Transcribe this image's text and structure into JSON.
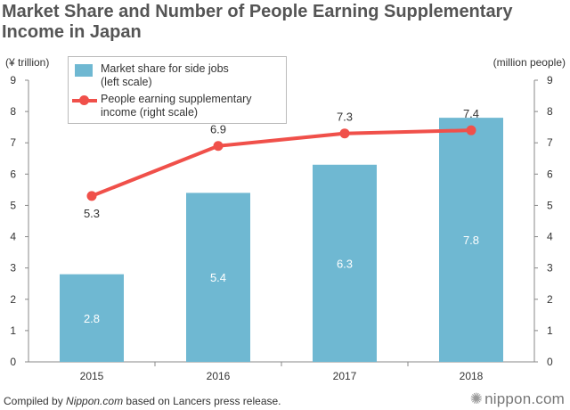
{
  "title": "Market Share and Number of People Earning Supplementary Income in Japan",
  "footer": {
    "prefix": "Compiled by ",
    "source": "Nippon.com",
    "suffix": " based on Lancers press release."
  },
  "brand": {
    "icon": "nippon-logo-icon",
    "text": "nippon.com"
  },
  "colors": {
    "bar": "#6fb8d2",
    "line": "#f0504a",
    "axis": "#888888",
    "grid": "#e0e0e0"
  },
  "chart_data": {
    "type": "bar",
    "title": "Market Share and Number of People Earning Supplementary Income in Japan",
    "categories": [
      "2015",
      "2016",
      "2017",
      "2018"
    ],
    "series": [
      {
        "name": "Market share for side jobs (left scale)",
        "kind": "bar",
        "axis": "left",
        "values": [
          2.8,
          5.4,
          6.3,
          7.8
        ]
      },
      {
        "name": "People earning supplementary income (right scale)",
        "kind": "line",
        "axis": "right",
        "values": [
          5.3,
          6.9,
          7.3,
          7.4
        ]
      }
    ],
    "left_axis": {
      "label": "(¥ trillion)",
      "ylim": [
        0,
        9
      ],
      "ticks": [
        "0",
        "1",
        "2",
        "3",
        "4",
        "5",
        "6",
        "7",
        "8",
        "9"
      ]
    },
    "right_axis": {
      "label": "(million people)",
      "ylim": [
        0,
        9
      ],
      "ticks": [
        "0",
        "1",
        "2",
        "3",
        "4",
        "5",
        "6",
        "7",
        "8",
        "9"
      ]
    },
    "legend": {
      "placement": "top-left",
      "bar_label_line1": "Market share for side jobs",
      "bar_label_line2": "(left scale)",
      "line_label_line1": "People earning supplementary",
      "line_label_line2": "income (right scale)"
    },
    "bar_labels": [
      "2.8",
      "5.4",
      "6.3",
      "7.8"
    ],
    "line_labels": [
      "5.3",
      "6.9",
      "7.3",
      "7.4"
    ],
    "grid": false
  }
}
